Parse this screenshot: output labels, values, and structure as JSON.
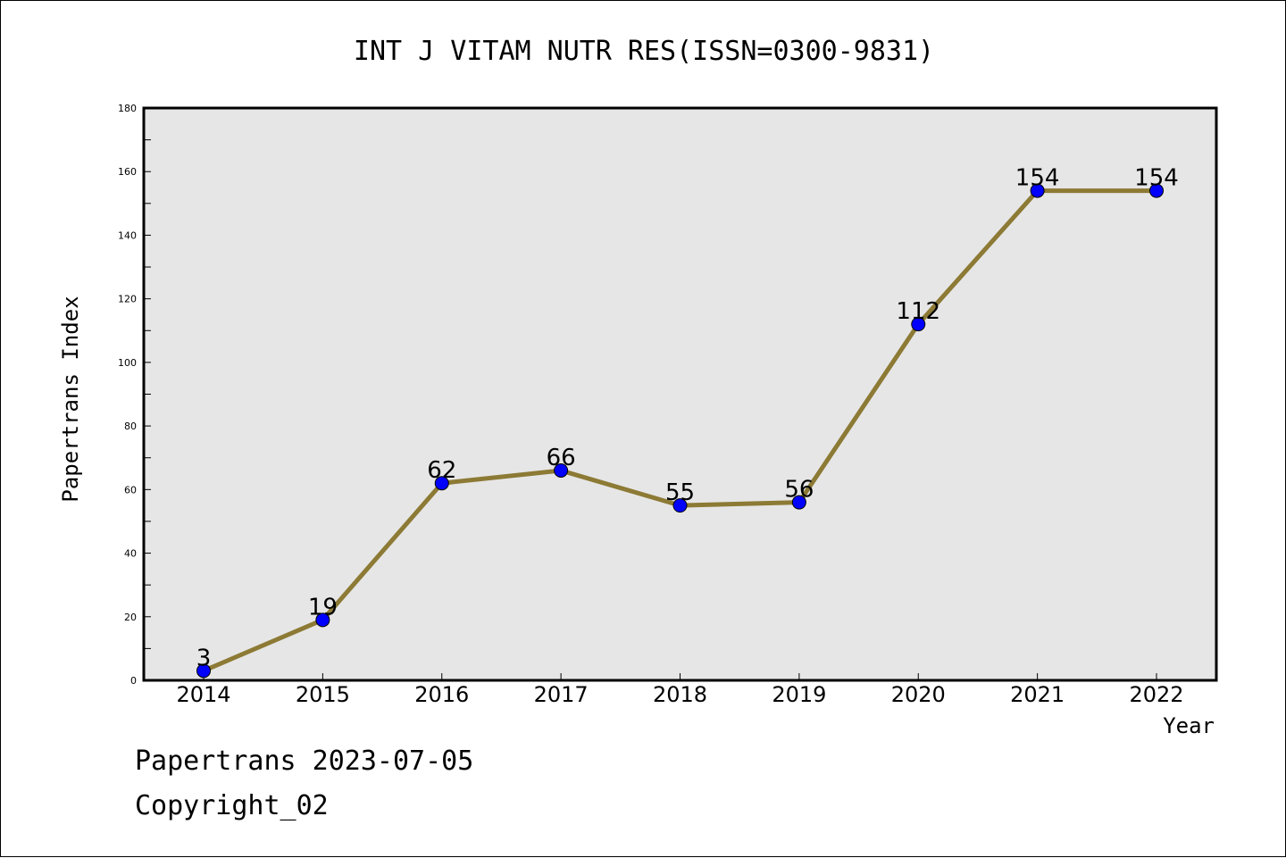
{
  "chart_data": {
    "type": "line",
    "title": "INT J VITAM NUTR RES(ISSN=0300-9831)",
    "xlabel": "Year",
    "ylabel": "Papertrans Index",
    "categories": [
      "2014",
      "2015",
      "2016",
      "2017",
      "2018",
      "2019",
      "2020",
      "2021",
      "2022"
    ],
    "series": [
      {
        "name": "Papertrans Index",
        "values": [
          3,
          19,
          62,
          66,
          55,
          56,
          112,
          154,
          154
        ]
      }
    ],
    "data_labels": [
      "3",
      "19",
      "62",
      "66",
      "55",
      "56",
      "112",
      "154",
      "154"
    ],
    "ylim": [
      0,
      180
    ],
    "y_ticks": [
      0,
      20,
      40,
      60,
      80,
      100,
      120,
      140,
      160,
      180
    ],
    "y_tick_labels": [
      "0",
      "20",
      "40",
      "60",
      "80",
      "100",
      "120",
      "140",
      "160",
      "180"
    ],
    "grid": false,
    "colors": {
      "line": "#8c7a35",
      "marker": "#0000ff",
      "plot_background": "#e6e6e6",
      "axes": "#000000"
    }
  },
  "footer": {
    "date_line": "Papertrans 2023-07-05",
    "copyright": "Copyright_02"
  }
}
